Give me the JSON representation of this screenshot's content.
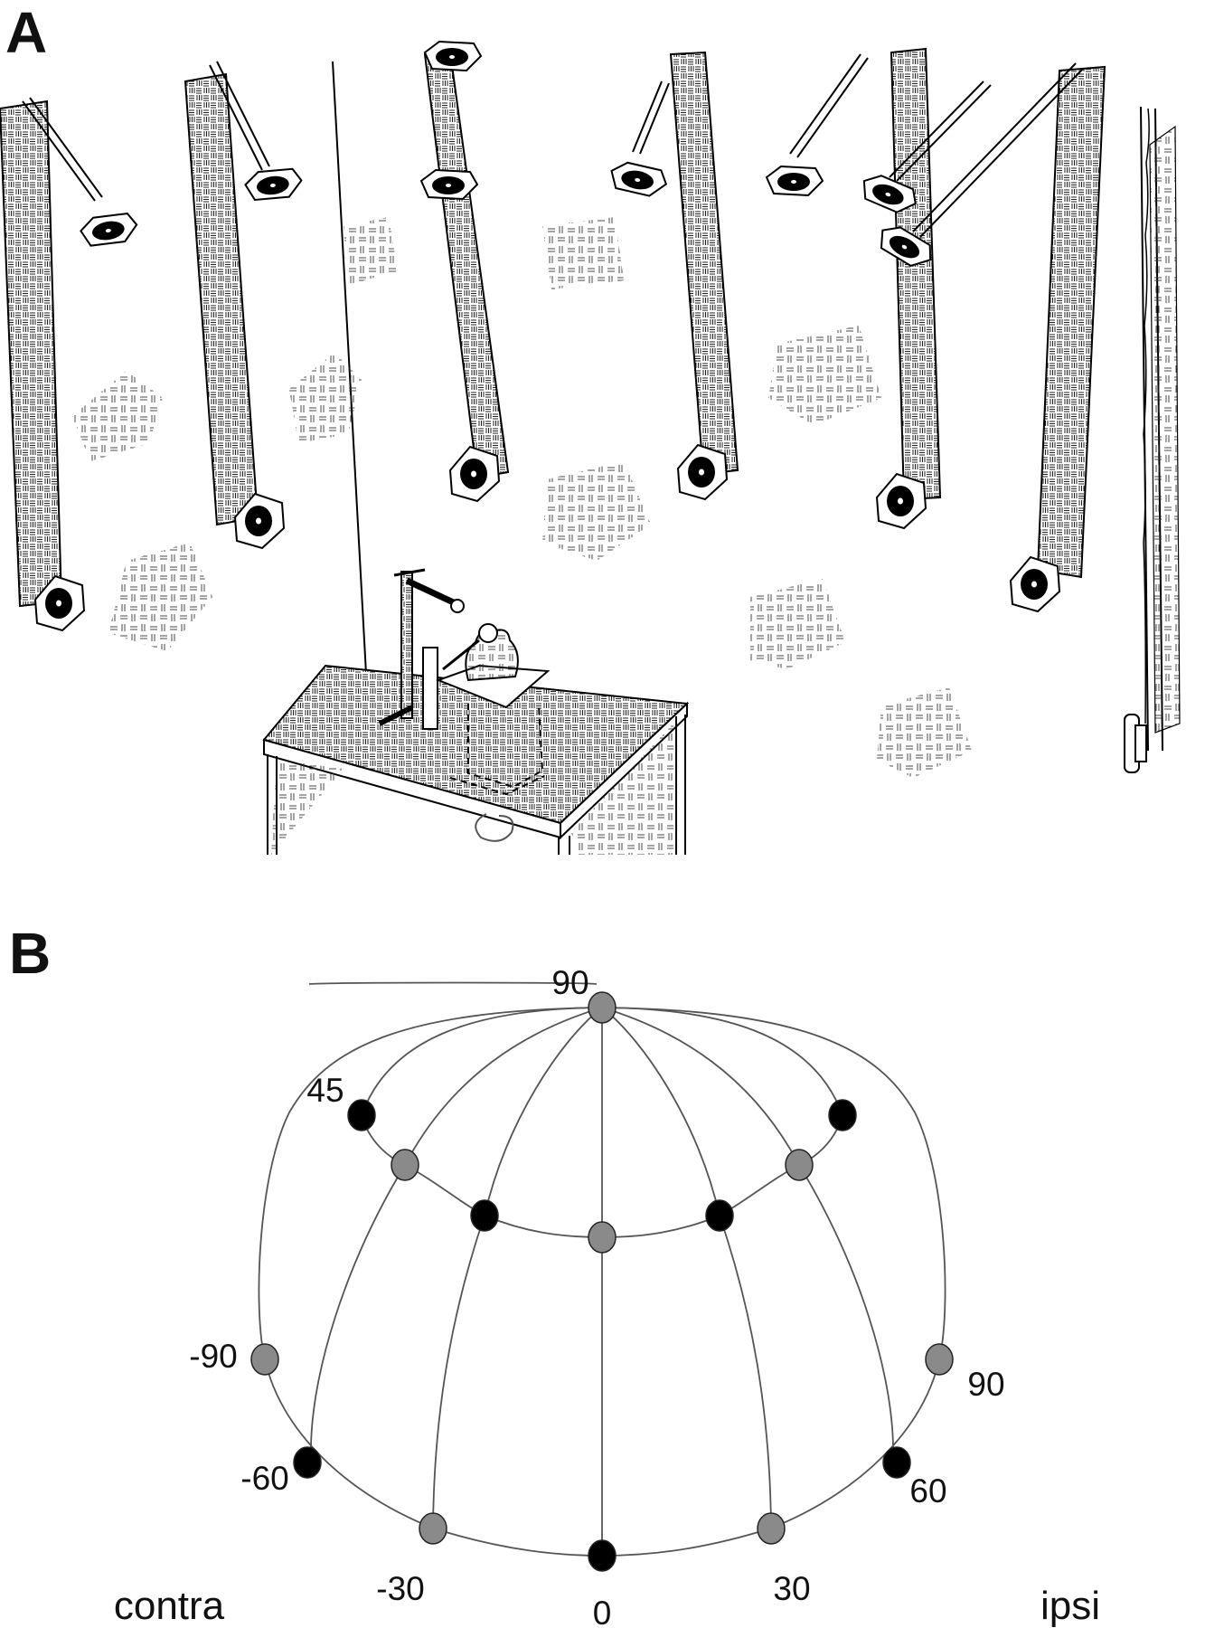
{
  "panel_a": {
    "label": "A"
  },
  "panel_b": {
    "label": "B",
    "elevation_labels": {
      "top": "90",
      "upper": "45"
    },
    "azimuth_labels": [
      "-90",
      "-60",
      "-30",
      "0",
      "30",
      "60",
      "90"
    ],
    "side_labels": {
      "left": "contra",
      "right": "ipsi"
    },
    "colors": {
      "gray_speaker": "#8a8a8a",
      "black_speaker": "#000000",
      "wire": "#555555"
    }
  }
}
